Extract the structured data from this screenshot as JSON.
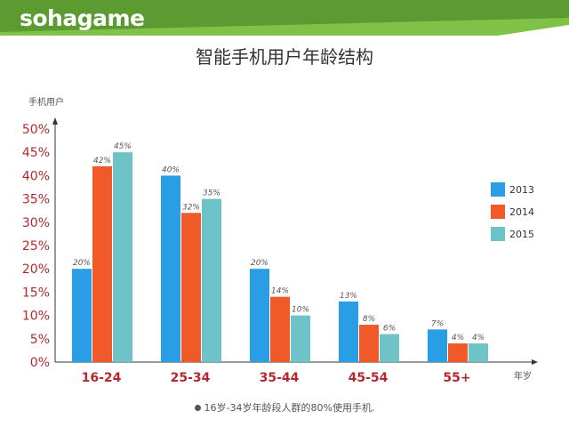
{
  "header": {
    "logo_text": "sohagame"
  },
  "colors": {
    "header_green": "#5b9b32",
    "header_light": "#7fc247"
  },
  "chart_data": {
    "type": "bar",
    "title": "智能手机用户年龄结构",
    "ylabel": "手机用户",
    "xlabel": "年岁",
    "categories": [
      "16-24",
      "25-34",
      "35-44",
      "45-54",
      "55+"
    ],
    "series": [
      {
        "name": "2013",
        "color": "#2a9ee5",
        "values": [
          20,
          40,
          20,
          13,
          7
        ]
      },
      {
        "name": "2014",
        "color": "#f05a28",
        "values": [
          42,
          32,
          14,
          8,
          4
        ]
      },
      {
        "name": "2015",
        "color": "#6ec3c9",
        "values": [
          45,
          35,
          10,
          6,
          4
        ]
      }
    ],
    "ylim": [
      0,
      50
    ],
    "yticks": [
      "0%",
      "5%",
      "10%",
      "15%",
      "20%",
      "25%",
      "30%",
      "35%",
      "40%",
      "45%",
      "50%"
    ],
    "value_suffix": "%",
    "legend_position": "right",
    "grid": false
  },
  "footnote": "16岁-34岁年龄段人群的80%使用手机."
}
